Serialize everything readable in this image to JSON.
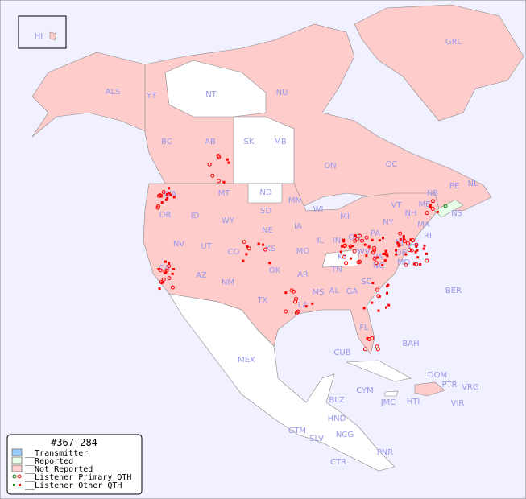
{
  "map": {
    "title": "#367-284",
    "colors": {
      "background": "#f0f0ff",
      "transmitter": "#99ccff",
      "reported": "#e6ffe6",
      "not_reported": "#ffcccc",
      "unlisted": "#ffffff",
      "listener_marker": "#ff0000",
      "reported_marker": "#008000",
      "label": "#9999ee"
    },
    "legend": [
      {
        "key": "transmitter",
        "label": "__Transmitter"
      },
      {
        "key": "reported",
        "label": "__Reported"
      },
      {
        "key": "not_reported",
        "label": "__Not Reported"
      },
      {
        "key": "primary_qth",
        "label": "__Listener Primary QTH"
      },
      {
        "key": "other_qth",
        "label": "__Listener Other QTH"
      }
    ],
    "regions": [
      "HI",
      "ALS",
      "YT",
      "NT",
      "NU",
      "GRL",
      "BC",
      "AB",
      "SK",
      "MB",
      "ON",
      "QC",
      "NL",
      "NB",
      "NS",
      "PE",
      "WA",
      "OR",
      "CA",
      "ID",
      "NV",
      "MT",
      "WY",
      "UT",
      "AZ",
      "CO",
      "NM",
      "ND",
      "SD",
      "NE",
      "KS",
      "OK",
      "TX",
      "MN",
      "IA",
      "MO",
      "AR",
      "LA",
      "WI",
      "IL",
      "MI",
      "IN",
      "OH",
      "KY",
      "TN",
      "MS",
      "AL",
      "GA",
      "FL",
      "SC",
      "NC",
      "VA",
      "WV",
      "PA",
      "NY",
      "VT",
      "NH",
      "ME",
      "MA",
      "CT",
      "RI",
      "NJ",
      "DE",
      "MD",
      "BER",
      "BAH",
      "CUB",
      "MEX",
      "CYM",
      "JMC",
      "HTI",
      "DOM",
      "PTR",
      "VRG",
      "VIR",
      "BLZ",
      "GTM",
      "HND",
      "SLV",
      "NCG",
      "CTR",
      "PNR"
    ]
  }
}
